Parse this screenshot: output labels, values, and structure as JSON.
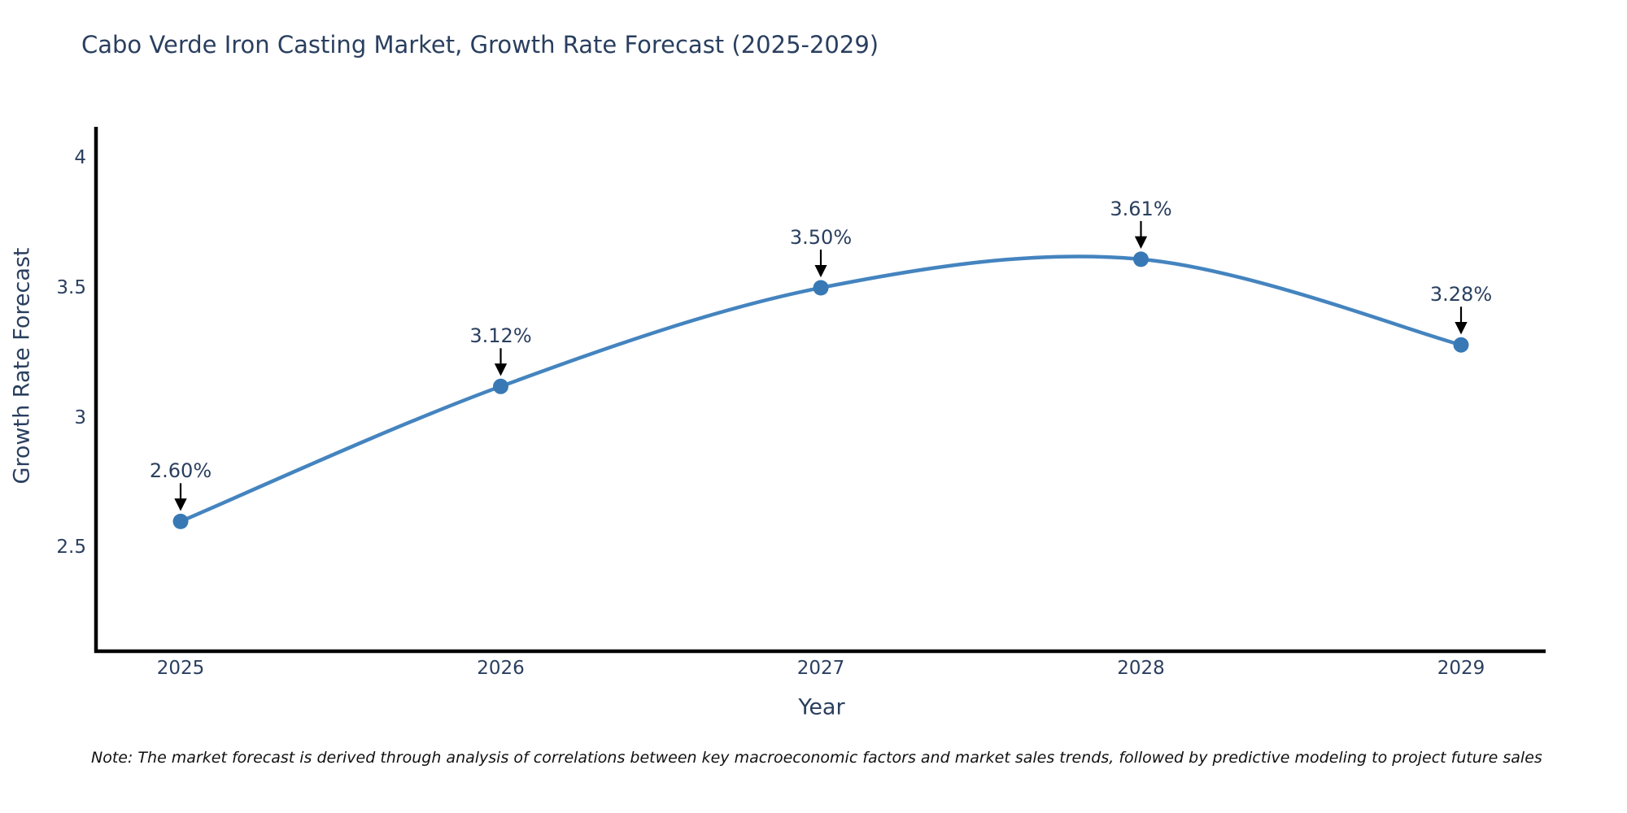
{
  "title": "Cabo Verde Iron Casting Market, Growth Rate Forecast (2025-2029)",
  "note": "Note: The market forecast is derived through analysis of correlations between key macroeconomic factors and market sales trends, followed by predictive modeling to project future sales",
  "axes": {
    "x_label": "Year",
    "y_label": "Growth Rate Forecast",
    "x_tick_labels": [
      "2025",
      "2026",
      "2027",
      "2028",
      "2029"
    ],
    "y_tick_labels": [
      "2.5",
      "3",
      "3.5",
      "4"
    ]
  },
  "chart_data": {
    "type": "line",
    "title": "Cabo Verde Iron Casting Market, Growth Rate Forecast (2025-2029)",
    "xlabel": "Year",
    "ylabel": "Growth Rate Forecast",
    "categories": [
      "2025",
      "2026",
      "2027",
      "2028",
      "2029"
    ],
    "values": [
      2.6,
      3.12,
      3.5,
      3.61,
      3.28
    ],
    "point_labels": [
      "2.60%",
      "3.12%",
      "3.50%",
      "3.61%",
      "3.28%"
    ],
    "y_ticks": [
      2.5,
      3.0,
      3.5,
      4.0
    ],
    "ylim": [
      2.1,
      4.12
    ],
    "line_shape": "spline",
    "markers": true,
    "grid": false,
    "legend_position": "none",
    "annotations": "value labels with down arrows above each point"
  },
  "colors": {
    "background": "#ffffff",
    "line": "#4484bf",
    "marker": "#3879b5",
    "text": "#2a3f5f",
    "axis": "#000000",
    "arrow": "#000000",
    "note_text": "#111111"
  }
}
